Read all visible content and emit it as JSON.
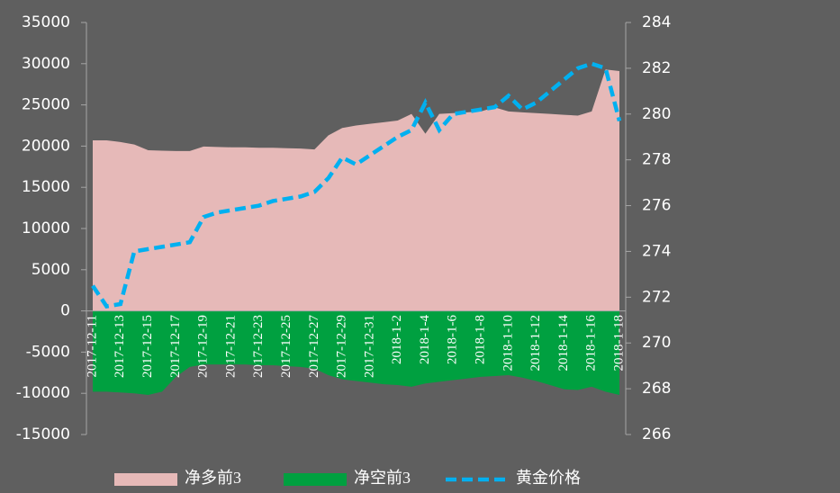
{
  "chart_data": {
    "type": "area-line",
    "categories": [
      "2017-12-11",
      null,
      "2017-12-13",
      null,
      "2017-12-15",
      null,
      "2017-12-17",
      null,
      "2017-12-19",
      null,
      "2017-12-21",
      null,
      "2017-12-23",
      null,
      "2017-12-25",
      null,
      "2017-12-27",
      null,
      "2017-12-29",
      null,
      "2017-12-31",
      null,
      "2018-1-2",
      null,
      "2018-1-4",
      null,
      "2018-1-6",
      null,
      "2018-1-8",
      null,
      "2018-1-10",
      null,
      "2018-1-12",
      null,
      "2018-1-14",
      null,
      "2018-1-16",
      null,
      "2018-1-18"
    ],
    "series": [
      {
        "name": "净多前3",
        "type": "area",
        "color": "#e6b9b8",
        "axis": "y",
        "values": [
          20700,
          20700,
          20500,
          20200,
          19500,
          19450,
          19400,
          19400,
          19950,
          19900,
          19850,
          19850,
          19800,
          19800,
          19750,
          19700,
          19600,
          21300,
          22200,
          22500,
          22700,
          22900,
          23100,
          23900,
          21500,
          23900,
          24000,
          24100,
          24200,
          24700,
          24200,
          24100,
          24000,
          23900,
          23800,
          23700,
          24200,
          29300,
          29100
        ]
      },
      {
        "name": "净空前3",
        "type": "area",
        "color": "#00a040",
        "axis": "y",
        "values": [
          -9800,
          -9800,
          -9900,
          -10000,
          -10200,
          -9800,
          -8000,
          -6800,
          -6500,
          -6500,
          -6500,
          -6500,
          -6600,
          -6600,
          -6700,
          -6800,
          -7000,
          -7800,
          -8300,
          -8500,
          -8700,
          -8900,
          -9000,
          -9200,
          -8800,
          -8600,
          -8400,
          -8200,
          -8000,
          -7900,
          -7800,
          -8100,
          -8500,
          -9000,
          -9500,
          -9600,
          -9200,
          -9800,
          -10200
        ]
      },
      {
        "name": "黄金价格",
        "type": "line",
        "color": "#00b0f0",
        "axis": "y2",
        "values": [
          272.5,
          271.6,
          271.7,
          274.0,
          274.1,
          274.2,
          274.3,
          274.4,
          275.5,
          275.7,
          275.8,
          275.9,
          276.0,
          276.2,
          276.3,
          276.4,
          276.6,
          277.2,
          278.1,
          277.8,
          278.2,
          278.6,
          279.0,
          279.3,
          280.5,
          279.3,
          280.0,
          280.1,
          280.2,
          280.3,
          280.8,
          280.2,
          280.5,
          281.0,
          281.5,
          282.0,
          282.2,
          282.0,
          279.7
        ]
      }
    ],
    "ylim": [
      -15000,
      35000
    ],
    "yticks": [
      -15000,
      -10000,
      -5000,
      0,
      5000,
      10000,
      15000,
      20000,
      25000,
      30000,
      35000
    ],
    "y2lim": [
      266,
      284
    ],
    "y2ticks": [
      266,
      268,
      270,
      272,
      274,
      276,
      278,
      280,
      282,
      284
    ],
    "legend": "bottom"
  }
}
